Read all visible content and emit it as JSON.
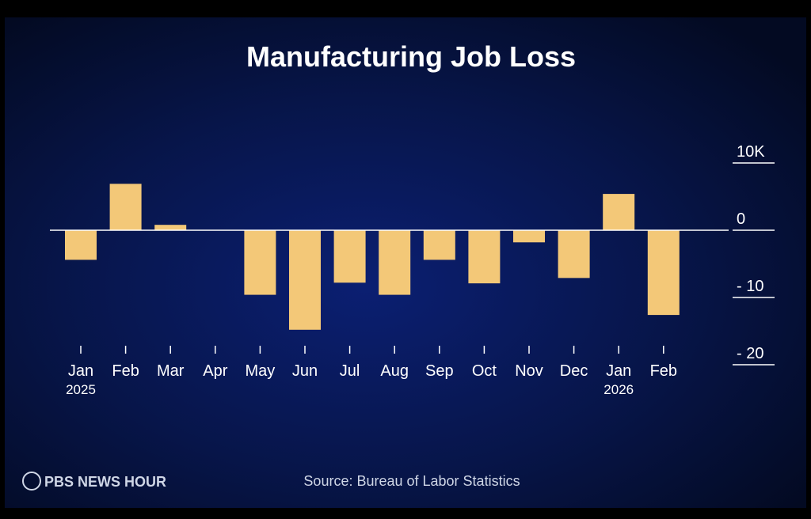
{
  "chart_data": {
    "type": "bar",
    "title": "Manufacturing Job Loss",
    "categories": [
      "Jan",
      "Feb",
      "Mar",
      "Apr",
      "May",
      "Jun",
      "Jul",
      "Aug",
      "Sep",
      "Oct",
      "Nov",
      "Dec",
      "Jan",
      "Feb"
    ],
    "year_labels": [
      "2025",
      null,
      null,
      null,
      null,
      null,
      null,
      null,
      null,
      null,
      null,
      null,
      "2026",
      null
    ],
    "values": [
      -4.4,
      6.9,
      0.8,
      0,
      -9.6,
      -14.8,
      -7.8,
      -9.6,
      -4.4,
      -7.9,
      -1.8,
      -7.1,
      5.4,
      -12.6
    ],
    "color": "#f3c878",
    "ylim": [
      -20,
      10
    ],
    "yticks": [
      {
        "value": 10,
        "label": "10K"
      },
      0,
      {
        "value": -10,
        "label": "- 10"
      },
      {
        "value": -20,
        "label": "- 20"
      }
    ],
    "source": "Source: Bureau of Labor Statistics",
    "logo": "PBS NEWS HOUR"
  }
}
